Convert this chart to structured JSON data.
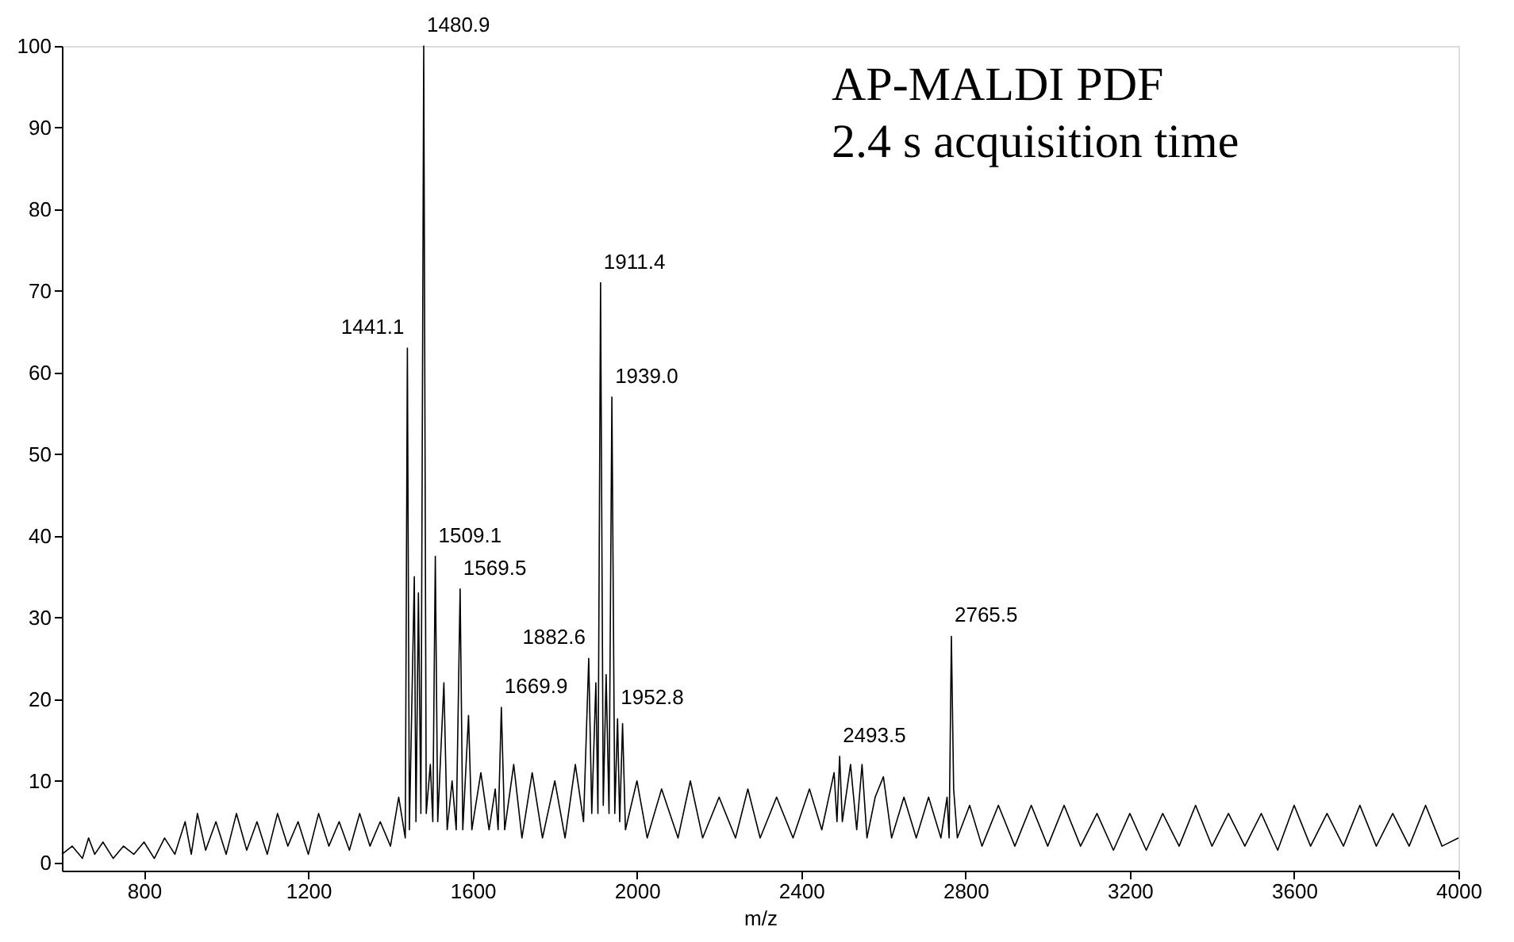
{
  "chart_data": {
    "type": "line",
    "xlabel": "m/z",
    "xlim": [
      600,
      4000
    ],
    "xticks": [
      800,
      1200,
      1600,
      2000,
      2400,
      2800,
      3200,
      3600,
      4000
    ],
    "ylim": [
      -1,
      100
    ],
    "yticks": [
      0,
      10,
      20,
      30,
      40,
      50,
      60,
      70,
      80,
      90,
      100
    ],
    "grid": false,
    "marker": "none",
    "line_style": "solid",
    "series": [
      {
        "color": "#000000",
        "x": [
          600,
          625,
          650,
          665,
          680,
          700,
          725,
          750,
          775,
          800,
          825,
          850,
          875,
          900,
          915,
          930,
          950,
          975,
          1000,
          1025,
          1050,
          1075,
          1100,
          1125,
          1150,
          1175,
          1200,
          1225,
          1250,
          1275,
          1300,
          1325,
          1350,
          1375,
          1400,
          1420,
          1436,
          1441.1,
          1446,
          1458,
          1462,
          1468,
          1474,
          1480.9,
          1487,
          1497,
          1503,
          1509.1,
          1515,
          1530,
          1538,
          1550,
          1560,
          1569.5,
          1576,
          1590,
          1598,
          1620,
          1640,
          1655,
          1662,
          1669.9,
          1678,
          1700,
          1720,
          1745,
          1770,
          1800,
          1825,
          1850,
          1870,
          1882.6,
          1890,
          1900,
          1905,
          1911.4,
          1918,
          1925,
          1932,
          1939.0,
          1946,
          1952.8,
          1958,
          1965,
          1972,
          2000,
          2025,
          2060,
          2100,
          2130,
          2160,
          2200,
          2240,
          2270,
          2300,
          2340,
          2380,
          2420,
          2450,
          2480,
          2487,
          2493.5,
          2500,
          2520,
          2535,
          2548,
          2560,
          2580,
          2600,
          2620,
          2650,
          2680,
          2710,
          2740,
          2755,
          2760,
          2765.5,
          2771,
          2780,
          2810,
          2840,
          2880,
          2920,
          2960,
          3000,
          3040,
          3080,
          3120,
          3160,
          3200,
          3240,
          3280,
          3320,
          3360,
          3400,
          3440,
          3480,
          3520,
          3560,
          3600,
          3640,
          3680,
          3720,
          3760,
          3800,
          3840,
          3880,
          3920,
          3960,
          4000
        ],
        "values": [
          1,
          2,
          0.5,
          3,
          1,
          2.5,
          0.5,
          2,
          1,
          2.5,
          0.5,
          3,
          1,
          5,
          1,
          6,
          1.5,
          5,
          1,
          6,
          1.5,
          5,
          1,
          6,
          2,
          5,
          1,
          6,
          2,
          5,
          1.5,
          6,
          2,
          5,
          2,
          8,
          3,
          63,
          4,
          35,
          5,
          33,
          6,
          100,
          6,
          12,
          5,
          37.5,
          5,
          22,
          4,
          10,
          4,
          33.5,
          4,
          18,
          4,
          11,
          4,
          9,
          4,
          19,
          4,
          12,
          3,
          11,
          3,
          10,
          3,
          12,
          5,
          25,
          6,
          22,
          6,
          71,
          7,
          23,
          6,
          57,
          6,
          17.6,
          5,
          17,
          4,
          10,
          3,
          9,
          3,
          10,
          3,
          8,
          3,
          9,
          3,
          8,
          3,
          9,
          4,
          11,
          5,
          13,
          5,
          12,
          4,
          12,
          3,
          8,
          10.5,
          3,
          8,
          3,
          8,
          3,
          8,
          3,
          27.7,
          9,
          3,
          7,
          2,
          7,
          2,
          7,
          2,
          7,
          2,
          6,
          1.5,
          6,
          1.5,
          6,
          2,
          7,
          2,
          6,
          2,
          6,
          1.5,
          7,
          2,
          6,
          2,
          7,
          2,
          6,
          2,
          7,
          2,
          3
        ]
      }
    ],
    "annotations": [
      "AP-MALDI PDF",
      "2.4 s acquisition time",
      {
        "text": "1441.1",
        "x": 1441.1,
        "y": 63
      },
      {
        "text": "1480.9",
        "x": 1480.9,
        "y": 100
      },
      {
        "text": "1509.1",
        "x": 1509.1,
        "y": 37.5
      },
      {
        "text": "1569.5",
        "x": 1569.5,
        "y": 33.5
      },
      {
        "text": "1669.9",
        "x": 1669.9,
        "y": 19
      },
      {
        "text": "1882.6",
        "x": 1882.6,
        "y": 25
      },
      {
        "text": "1911.4",
        "x": 1911.4,
        "y": 71
      },
      {
        "text": "1939.0",
        "x": 1939.0,
        "y": 57
      },
      {
        "text": "1952.8",
        "x": 1952.8,
        "y": 17.6
      },
      {
        "text": "2493.5",
        "x": 2493.5,
        "y": 13
      },
      {
        "text": "2765.5",
        "x": 2765.5,
        "y": 27.7
      }
    ]
  }
}
